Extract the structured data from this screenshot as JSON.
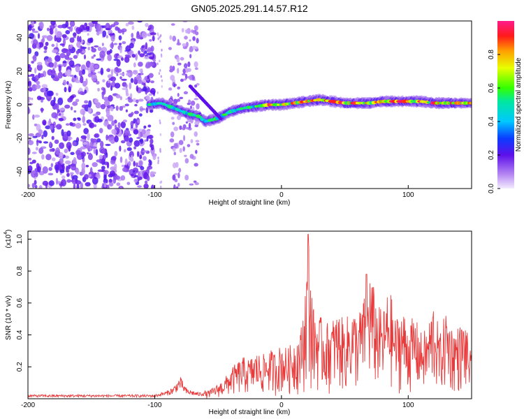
{
  "figure": {
    "title": "GN05.2025.291.14.57.R12"
  },
  "chart_data": [
    {
      "type": "heatmap",
      "title": "GN05.2025.291.14.57.R12",
      "xlabel": "Height of straight line (km)",
      "ylabel": "Frequency (Hz)",
      "xlim": [
        -200,
        150
      ],
      "ylim": [
        -50,
        50
      ],
      "xticks": [
        -200,
        -100,
        0,
        100
      ],
      "yticks": [
        -40,
        -20,
        0,
        20,
        40
      ],
      "colorbar": {
        "label": "Normalized spectral amplitude",
        "range": [
          0.0,
          1.0
        ],
        "ticks": [
          "0.0",
          "0.2",
          "0.4",
          "0.6",
          "0.8"
        ]
      },
      "ridge": {
        "description_points_x": [
          -105,
          -95,
          -85,
          -75,
          -65,
          -60,
          -55,
          -50,
          -45,
          -40,
          -30,
          -20,
          -10,
          0,
          10,
          20,
          30,
          40,
          50,
          60,
          70,
          80,
          90,
          100,
          110,
          120,
          130,
          140,
          150
        ],
        "frequency_hz": [
          0,
          1,
          -2,
          -5,
          -7,
          -10,
          -9,
          -8,
          -6,
          -4,
          -2,
          -1,
          0,
          0,
          1,
          2,
          3,
          2,
          1,
          1,
          1,
          2,
          2,
          2,
          2,
          1,
          1,
          1,
          1
        ]
      }
    },
    {
      "type": "line",
      "xlabel": "Height of straight line (km)",
      "ylabel": "SNR (10 * v/v)",
      "y_scale_label": "(x10",
      "y_scale_exponent": "4",
      "y_scale_suffix": ")",
      "xlim": [
        -200,
        150
      ],
      "ylim": [
        0,
        1.05
      ],
      "xticks": [
        -200,
        -100,
        0,
        100
      ],
      "yticks": [
        "0.2",
        "0.4",
        "0.6",
        "0.8",
        "1.0"
      ],
      "series": [
        {
          "name": "SNR",
          "color": "#e83a3a",
          "x": [
            -200,
            -180,
            -160,
            -140,
            -120,
            -100,
            -90,
            -85,
            -80,
            -75,
            -70,
            -65,
            -60,
            -55,
            -50,
            -45,
            -40,
            -35,
            -30,
            -25,
            -20,
            -15,
            -10,
            -5,
            0,
            5,
            10,
            15,
            18,
            20,
            21,
            22,
            25,
            30,
            35,
            40,
            45,
            50,
            55,
            60,
            65,
            70,
            75,
            80,
            85,
            90,
            95,
            100,
            105,
            110,
            115,
            120,
            125,
            130,
            135,
            140,
            145,
            150
          ],
          "y": [
            0.02,
            0.02,
            0.02,
            0.02,
            0.02,
            0.02,
            0.04,
            0.06,
            0.11,
            0.05,
            0.04,
            0.03,
            0.04,
            0.06,
            0.09,
            0.12,
            0.18,
            0.22,
            0.25,
            0.24,
            0.28,
            0.26,
            0.3,
            0.28,
            0.33,
            0.3,
            0.36,
            0.4,
            0.6,
            0.85,
            1.03,
            0.9,
            0.55,
            0.5,
            0.45,
            0.48,
            0.52,
            0.46,
            0.55,
            0.5,
            0.6,
            0.78,
            0.58,
            0.52,
            0.68,
            0.48,
            0.55,
            0.45,
            0.5,
            0.4,
            0.42,
            0.6,
            0.38,
            0.55,
            0.42,
            0.44,
            0.46,
            0.25
          ]
        }
      ]
    }
  ]
}
